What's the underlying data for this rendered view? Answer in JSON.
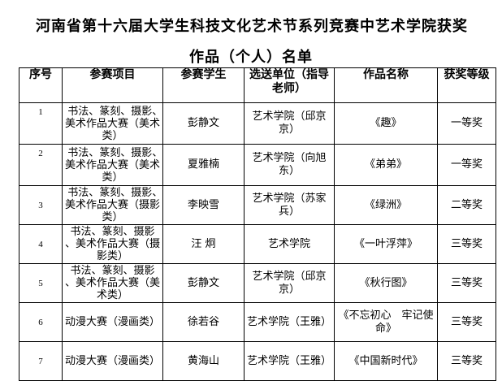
{
  "title_line1": "河南省第十六届大学生科技文化艺术节系列竞赛中艺术学院获奖",
  "title_line2": "作品（个人）名单",
  "headers": [
    "序号",
    "参赛项目",
    "参赛学生",
    "选送单位（指导老师）",
    "作品名称",
    "获奖等级"
  ],
  "rows": [
    {
      "no": "1",
      "item": "书法、篆刻、摄影、　　美术作品大赛（美术类）",
      "student": "彭静文",
      "unit": "艺术学院（邱京京）",
      "work": "《趣》",
      "award": "一等奖"
    },
    {
      "no": "2",
      "item": "书法、篆刻、摄影、　　美术作品大赛（美术类）",
      "student": "夏雅楠",
      "unit": "艺术学院（向旭东）",
      "work": "《弟弟》",
      "award": "一等奖"
    },
    {
      "no": "3",
      "item": "书法、篆刻、摄影、　　美术作品大赛（摄影类）",
      "student": "李映雪",
      "unit": "艺术学院（苏家兵）",
      "work": "《绿洲》",
      "award": "二等奖"
    },
    {
      "no": "4",
      "item": "书法、篆刻、摄影　　、美术作品大赛（摄影类）",
      "student": "汪 炯",
      "unit": "艺术学院",
      "work": "《一叶浮萍》",
      "award": "三等奖"
    },
    {
      "no": "5",
      "item": "书法、篆刻、摄影　　、美术作品大赛（美术类）",
      "student": "彭静文",
      "unit": "艺术学院（邱京京）",
      "work": "《秋行图》",
      "award": "三等奖"
    },
    {
      "no": "6",
      "item": "动漫大赛（漫画类）",
      "student": "徐若谷",
      "unit": "艺术学院（王雅）",
      "work": "《不忘初心　牢记使命》",
      "award": "三等奖"
    },
    {
      "no": "7",
      "item": "动漫大赛（漫画类）",
      "student": "黄海山",
      "unit": "艺术学院（王雅）",
      "work": "《中国新时代》",
      "award": "三等奖"
    }
  ]
}
